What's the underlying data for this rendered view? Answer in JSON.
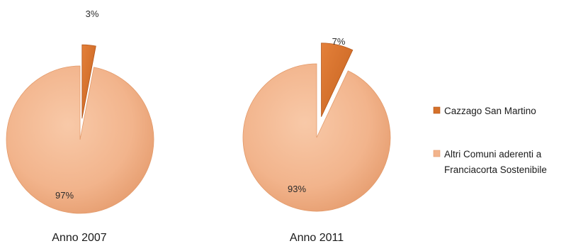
{
  "chart_data": [
    {
      "type": "pie",
      "title": "",
      "caption": "Anno 2007",
      "slices": [
        {
          "label": "Cazzago San Martino",
          "value": 3,
          "text": "3%"
        },
        {
          "label": "Altri Comuni aderenti a Franciacorta Sostenibile",
          "value": 97,
          "text": "97%"
        }
      ]
    },
    {
      "type": "pie",
      "title": "",
      "caption": "Anno 2011",
      "slices": [
        {
          "label": "Cazzago San Martino",
          "value": 7,
          "text": "7%"
        },
        {
          "label": "Altri Comuni aderenti a Franciacorta Sostenibile",
          "value": 93,
          "text": "93%"
        }
      ]
    }
  ],
  "legend": {
    "placement": "right",
    "items": [
      {
        "line1": "Cazzago San Martino",
        "line2": "",
        "color": "#d5712a"
      },
      {
        "line1": "Altri Comuni aderenti a",
        "line2": "Franciacorta Sostenibile",
        "color": "#f2b48c"
      }
    ]
  },
  "colors": {
    "cazzago": "#d5712a",
    "cazzago_dark": "#b4561a",
    "altri": "#f2b48c",
    "altri_dark": "#e39a6a"
  }
}
